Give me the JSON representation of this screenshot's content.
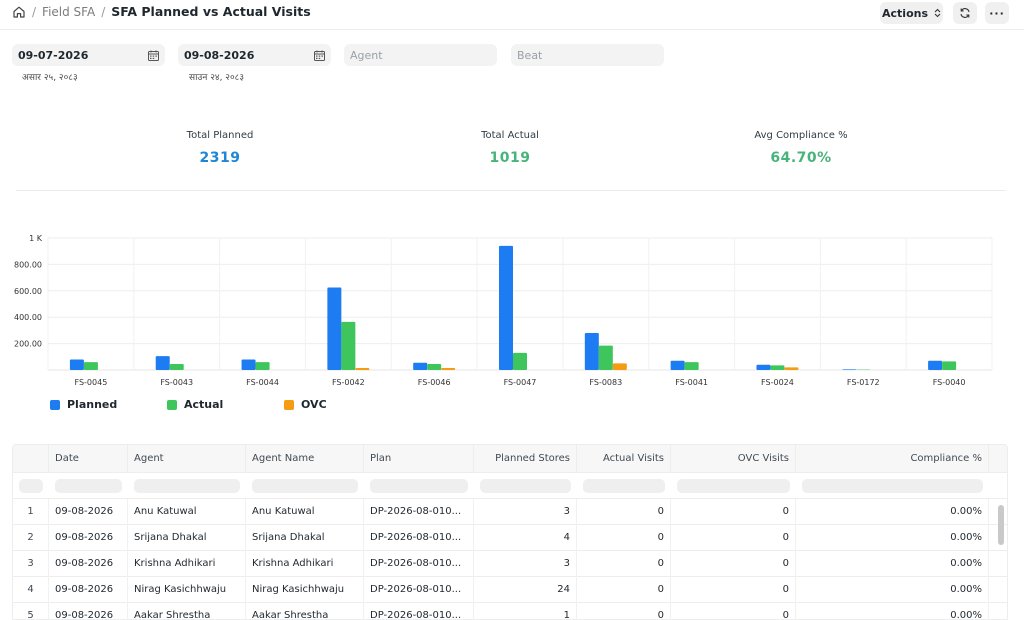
{
  "breadcrumb": {
    "items": [
      "Field SFA"
    ],
    "current": "SFA Planned vs Actual Visits"
  },
  "toolbar": {
    "actions_label": "Actions",
    "more_label": "···"
  },
  "filters": {
    "from_date": "09-07-2026",
    "from_date_alt": "असार २५, २०८३",
    "to_date": "09-08-2026",
    "to_date_alt": "साउन २४, २०८३",
    "agent_placeholder": "Agent",
    "beat_placeholder": "Beat"
  },
  "kpis": {
    "total_planned_label": "Total Planned",
    "total_planned_value": "2319",
    "total_actual_label": "Total Actual",
    "total_actual_value": "1019",
    "avg_compliance_label": "Avg Compliance %",
    "avg_compliance_value": "64.70%"
  },
  "colors": {
    "planned": "#1e7cf2",
    "actual": "#3ec65d",
    "ovc": "#f59c12",
    "kpi_blue": "#1f86d6",
    "kpi_green": "#48b37a"
  },
  "chart_data": {
    "type": "bar",
    "categories": [
      "FS-0045",
      "FS-0043",
      "FS-0044",
      "FS-0042",
      "FS-0046",
      "FS-0047",
      "FS-0083",
      "FS-0041",
      "FS-0024",
      "FS-0172",
      "FS-0040"
    ],
    "series": [
      {
        "name": "Planned",
        "values": [
          80,
          105,
          80,
          625,
          55,
          940,
          280,
          70,
          40,
          5,
          70
        ]
      },
      {
        "name": "Actual",
        "values": [
          60,
          45,
          60,
          365,
          45,
          130,
          185,
          60,
          35,
          3,
          65
        ]
      },
      {
        "name": "OVC",
        "values": [
          0,
          0,
          0,
          15,
          15,
          0,
          50,
          0,
          20,
          0,
          0
        ]
      }
    ],
    "y_ticks": [
      "200.00",
      "400.00",
      "600.00",
      "800.00",
      "1 K"
    ],
    "ylim": [
      0,
      1000
    ],
    "legend_position": "bottom-left",
    "grid": true
  },
  "table": {
    "columns": [
      "Date",
      "Agent",
      "Agent Name",
      "Plan",
      "Planned Stores",
      "Actual Visits",
      "OVC Visits",
      "Compliance %"
    ],
    "rows": [
      {
        "idx": "1",
        "date": "09-08-2026",
        "agent": "Anu Katuwal",
        "agent_name": "Anu Katuwal",
        "plan": "DP-2026-08-010...",
        "planned": "3",
        "actual": "0",
        "ovc": "0",
        "compliance": "0.00%"
      },
      {
        "idx": "2",
        "date": "09-08-2026",
        "agent": "Srijana Dhakal",
        "agent_name": "Srijana Dhakal",
        "plan": "DP-2026-08-010...",
        "planned": "4",
        "actual": "0",
        "ovc": "0",
        "compliance": "0.00%"
      },
      {
        "idx": "3",
        "date": "09-08-2026",
        "agent": "Krishna Adhikari",
        "agent_name": "Krishna Adhikari",
        "plan": "DP-2026-08-010...",
        "planned": "3",
        "actual": "0",
        "ovc": "0",
        "compliance": "0.00%"
      },
      {
        "idx": "4",
        "date": "09-08-2026",
        "agent": "Nirag Kasichhwaju",
        "agent_name": "Nirag Kasichhwaju",
        "plan": "DP-2026-08-010...",
        "planned": "24",
        "actual": "0",
        "ovc": "0",
        "compliance": "0.00%"
      },
      {
        "idx": "5",
        "date": "09-08-2026",
        "agent": "Aakar Shrestha",
        "agent_name": "Aakar Shrestha",
        "plan": "DP-2026-08-010...",
        "planned": "1",
        "actual": "0",
        "ovc": "0",
        "compliance": "0.00%"
      }
    ]
  }
}
